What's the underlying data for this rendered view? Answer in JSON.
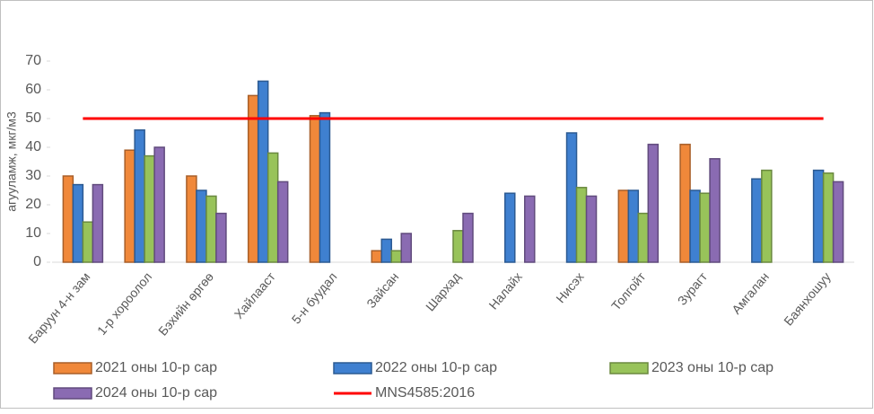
{
  "chart_data": {
    "type": "bar",
    "y_axis_label": "агууламж, мкг/м3",
    "categories": [
      "Баруун 4-н зам",
      "1-р хороолол",
      "Бэхийн өргөө",
      "Хайлааст",
      "5-н буудал",
      "Зайсан",
      "Шархад",
      "Налайх",
      "Нисэх",
      "Толгойт",
      "Зурагт",
      "Амгалан",
      "Баянхошуу"
    ],
    "series": [
      {
        "name": "2021 оны 10-р сар",
        "color": "#f0883a",
        "values": [
          30,
          39,
          30,
          58,
          51,
          4,
          null,
          null,
          null,
          25,
          41,
          null,
          null
        ]
      },
      {
        "name": "2022 оны 10-р сар",
        "color": "#3f80d0",
        "values": [
          27,
          46,
          25,
          63,
          52,
          8,
          null,
          24,
          45,
          25,
          25,
          29,
          32
        ]
      },
      {
        "name": "2023 оны 10-р сар",
        "color": "#98c35a",
        "values": [
          14,
          37,
          23,
          38,
          null,
          4,
          11,
          null,
          26,
          17,
          24,
          32,
          31
        ]
      },
      {
        "name": "2024 оны 10-р сар",
        "color": "#8a6bb2",
        "values": [
          27,
          40,
          17,
          28,
          null,
          10,
          17,
          23,
          23,
          41,
          36,
          null,
          28
        ]
      }
    ],
    "reference_line": {
      "name": "MNS4585:2016",
      "value": 50,
      "color": "#ff0000"
    },
    "ylim": [
      0,
      70
    ],
    "yticks": [
      0,
      10,
      20,
      30,
      40,
      50,
      60,
      70
    ]
  }
}
